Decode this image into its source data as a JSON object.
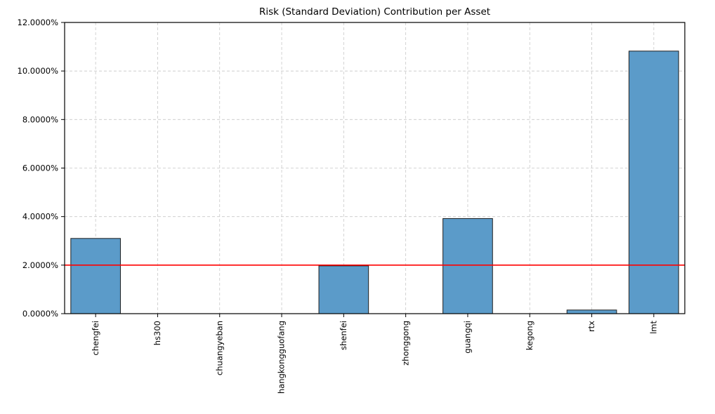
{
  "chart_data": {
    "type": "bar",
    "title": "Risk (Standard Deviation) Contribution per Asset",
    "categories": [
      "chengfei",
      "hs300",
      "chuangyeban",
      "hangkongguofang",
      "shenfei",
      "zhonggong",
      "guangqi",
      "kegong",
      "rtx",
      "lmt"
    ],
    "values": [
      3.1,
      0.0,
      0.0,
      0.0,
      1.97,
      0.0,
      3.92,
      0.0,
      0.15,
      10.82
    ],
    "unit": "%",
    "xlabel": "",
    "ylabel": "",
    "ylim": [
      0,
      12
    ],
    "ytick_step": 2,
    "ytick_labels": [
      "0.0000%",
      "2.0000%",
      "4.0000%",
      "6.0000%",
      "8.0000%",
      "10.0000%",
      "12.0000%"
    ],
    "threshold_line": {
      "value": 2.0,
      "color": "#ff0000"
    },
    "bar_color": "#5b9bc9",
    "bar_edge_color": "#1f1f1f",
    "grid": true,
    "grid_color": "#c8c8c8",
    "legend": "none"
  }
}
